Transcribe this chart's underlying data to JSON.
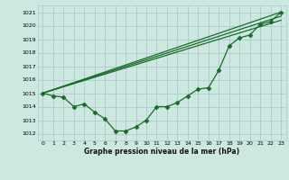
{
  "bg_color": "#cce8e0",
  "grid_color": "#aacccc",
  "line_color": "#1a6b2a",
  "xlabel": "Graphe pression niveau de la mer (hPa)",
  "xlim": [
    -0.5,
    23.5
  ],
  "ylim": [
    1011.5,
    1021.5
  ],
  "yticks": [
    1012,
    1013,
    1014,
    1015,
    1016,
    1017,
    1018,
    1019,
    1020,
    1021
  ],
  "xticks": [
    0,
    1,
    2,
    3,
    4,
    5,
    6,
    7,
    8,
    9,
    10,
    11,
    12,
    13,
    14,
    15,
    16,
    17,
    18,
    19,
    20,
    21,
    22,
    23
  ],
  "line1_x": [
    0,
    1,
    2,
    3,
    4,
    5,
    6,
    7,
    8,
    9,
    10,
    11,
    12,
    13,
    14,
    15,
    16,
    17,
    18,
    19,
    20,
    21,
    22,
    23
  ],
  "line1_y": [
    1015.0,
    1014.8,
    1014.7,
    1014.0,
    1014.2,
    1013.6,
    1013.1,
    1012.2,
    1012.2,
    1012.5,
    1013.0,
    1014.0,
    1014.0,
    1014.3,
    1014.8,
    1015.3,
    1015.4,
    1016.7,
    1018.5,
    1019.1,
    1019.3,
    1020.1,
    1020.3,
    1021.0
  ],
  "line2_x": [
    0,
    23
  ],
  "line2_y": [
    1015.0,
    1021.0
  ],
  "line3_x": [
    0,
    23
  ],
  "line3_y": [
    1015.0,
    1020.7
  ],
  "line4_x": [
    0,
    23
  ],
  "line4_y": [
    1015.0,
    1020.4
  ]
}
